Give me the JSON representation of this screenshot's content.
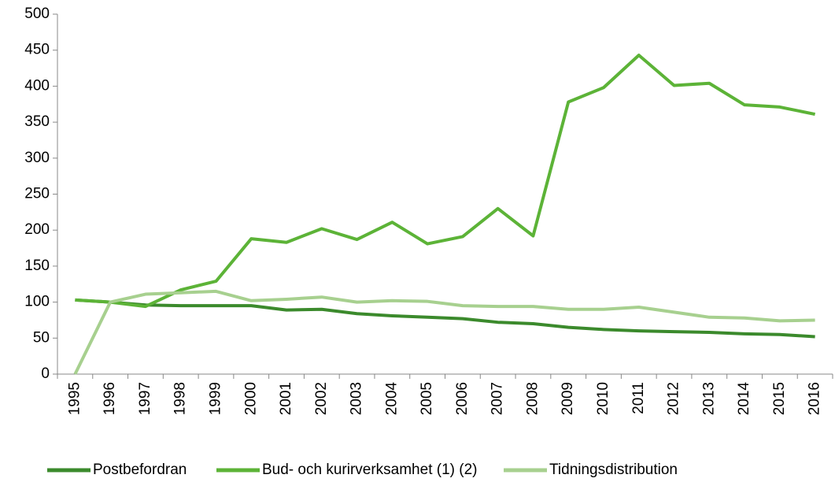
{
  "chart_data": {
    "type": "line",
    "categories": [
      "1995",
      "1996",
      "1997",
      "1998",
      "1999",
      "2000",
      "2001",
      "2002",
      "2003",
      "2004",
      "2005",
      "2006",
      "2007",
      "2008",
      "2009",
      "2010",
      "2011",
      "2012",
      "2013",
      "2014",
      "2015",
      "2016"
    ],
    "series": [
      {
        "name": "Postbefordran",
        "color": "#3b8a2c",
        "values": [
          103,
          100,
          96,
          95,
          95,
          95,
          89,
          90,
          84,
          81,
          79,
          77,
          72,
          70,
          65,
          62,
          60,
          59,
          58,
          56,
          55,
          52
        ]
      },
      {
        "name": "Bud- och kurirverksamhet (1) (2)",
        "color": "#5cb337",
        "values": [
          103,
          100,
          94,
          117,
          129,
          188,
          183,
          202,
          187,
          211,
          181,
          191,
          230,
          192,
          378,
          398,
          443,
          401,
          404,
          374,
          371,
          361
        ]
      },
      {
        "name": "Tidningsdistribution",
        "color": "#a7d08f",
        "values": [
          0,
          100,
          111,
          113,
          115,
          102,
          104,
          107,
          100,
          102,
          101,
          95,
          94,
          94,
          90,
          90,
          93,
          86,
          79,
          78,
          74,
          75
        ]
      }
    ],
    "ylim": [
      0,
      500
    ],
    "yticks": [
      0,
      50,
      100,
      150,
      200,
      250,
      300,
      350,
      400,
      450,
      500
    ],
    "grid": false,
    "legend": "bottom"
  }
}
